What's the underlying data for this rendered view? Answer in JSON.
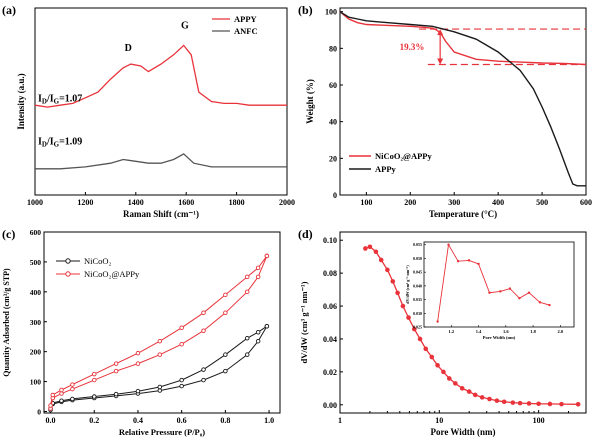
{
  "colors": {
    "red": "#e8333a",
    "black": "#1a1a1a",
    "gray": "#555555"
  },
  "chart_data": [
    {
      "panel": "(a)",
      "type": "line",
      "xlabel": "Raman Shift (cm⁻¹)",
      "ylabel": "Intensity (a.u.)",
      "xlim": [
        1000,
        2000
      ],
      "xticks": [
        1000,
        1200,
        1400,
        1600,
        1800,
        2000
      ],
      "ylim": [
        0,
        1
      ],
      "legend": "top-right",
      "series": [
        {
          "name": "APPY",
          "color": "#e8333a",
          "x": [
            1000,
            1050,
            1100,
            1150,
            1200,
            1250,
            1300,
            1350,
            1380,
            1420,
            1450,
            1500,
            1550,
            1590,
            1620,
            1650,
            1700,
            1750,
            1800,
            1850,
            1900,
            1950,
            2000
          ],
          "y": [
            0.48,
            0.47,
            0.48,
            0.49,
            0.52,
            0.55,
            0.62,
            0.68,
            0.7,
            0.69,
            0.66,
            0.7,
            0.75,
            0.8,
            0.75,
            0.55,
            0.5,
            0.49,
            0.49,
            0.48,
            0.48,
            0.48,
            0.48
          ]
        },
        {
          "name": "ANFC",
          "color": "#555555",
          "x": [
            1000,
            1100,
            1200,
            1300,
            1350,
            1400,
            1450,
            1500,
            1550,
            1590,
            1630,
            1700,
            1800,
            1900,
            2000
          ],
          "y": [
            0.14,
            0.14,
            0.15,
            0.17,
            0.19,
            0.18,
            0.17,
            0.17,
            0.19,
            0.22,
            0.17,
            0.15,
            0.15,
            0.15,
            0.15
          ]
        }
      ],
      "annotations": [
        {
          "text": "D",
          "x": 1370,
          "y": 0.77
        },
        {
          "text": "G",
          "x": 1595,
          "y": 0.89
        }
      ],
      "ratio_labels": [
        {
          "text": "Iₒ/Iₓ=1.07",
          "prefix": "I",
          "sub1": "D",
          "mid": "/I",
          "sub2": "G",
          "value": "=1.07"
        },
        {
          "text": "Iₒ/Iₓ=1.09",
          "prefix": "I",
          "sub1": "D",
          "mid": "/I",
          "sub2": "G",
          "value": "=1.09"
        }
      ]
    },
    {
      "panel": "(b)",
      "type": "line",
      "xlabel": "Temperature (°C)",
      "ylabel": "Weight (%)",
      "xlim": [
        40,
        600
      ],
      "xticks": [
        100,
        200,
        300,
        400,
        500,
        600
      ],
      "ylim": [
        0,
        102
      ],
      "yticks": [
        0,
        20,
        40,
        60,
        80,
        100
      ],
      "legend": "bottom-left",
      "annotation": "19.3%",
      "reference_lines_y": [
        90.5,
        71.2
      ],
      "series": [
        {
          "name": "NiCoO₂@APPy",
          "color": "#e8333a",
          "x": [
            40,
            60,
            80,
            100,
            150,
            200,
            230,
            250,
            260,
            270,
            280,
            300,
            350,
            400,
            450,
            500,
            550,
            600
          ],
          "y": [
            100,
            96,
            94,
            93,
            92.5,
            92,
            91.5,
            91,
            90,
            88,
            84,
            78,
            74,
            73,
            72.5,
            72,
            71.8,
            71.2
          ]
        },
        {
          "name": "APPy",
          "color": "#1a1a1a",
          "x": [
            40,
            60,
            80,
            100,
            150,
            200,
            250,
            300,
            350,
            400,
            450,
            480,
            500,
            520,
            540,
            560,
            570,
            580,
            590,
            600
          ],
          "y": [
            100,
            97,
            96,
            95,
            94,
            93,
            92,
            89,
            85,
            78,
            68,
            58,
            48,
            37,
            25,
            12,
            6,
            5,
            5,
            5
          ]
        }
      ]
    },
    {
      "panel": "(c)",
      "type": "line",
      "xlabel": "Relative Pressure (P/P₀)",
      "ylabel": "Quantity Adsorbed (cm³/g STP)",
      "xlim": [
        -0.03,
        1.05
      ],
      "xticks": [
        0.0,
        0.2,
        0.4,
        0.6,
        0.8,
        1.0
      ],
      "ylim": [
        -5,
        600
      ],
      "yticks": [
        0,
        100,
        200,
        300,
        400,
        500,
        600
      ],
      "legend": "top-left",
      "series": [
        {
          "name": "NiCoO₂",
          "color": "#1a1a1a",
          "x": [
            0.0,
            0.01,
            0.05,
            0.1,
            0.2,
            0.3,
            0.4,
            0.5,
            0.6,
            0.7,
            0.8,
            0.9,
            0.95,
            0.99
          ],
          "y_adsorption": [
            5,
            25,
            32,
            38,
            45,
            52,
            60,
            70,
            85,
            105,
            135,
            190,
            235,
            285
          ],
          "y_desorption": [
            10,
            28,
            36,
            42,
            50,
            58,
            68,
            82,
            105,
            140,
            190,
            245,
            265,
            285
          ]
        },
        {
          "name": "NiCoO₂@APPy",
          "color": "#e8333a",
          "x": [
            0.0,
            0.01,
            0.05,
            0.1,
            0.2,
            0.3,
            0.4,
            0.5,
            0.6,
            0.7,
            0.8,
            0.9,
            0.95,
            0.99
          ],
          "y_adsorption": [
            10,
            45,
            60,
            75,
            105,
            135,
            160,
            190,
            225,
            270,
            330,
            400,
            450,
            520
          ],
          "y_desorption": [
            20,
            55,
            72,
            90,
            125,
            160,
            195,
            235,
            280,
            330,
            390,
            450,
            480,
            520
          ]
        }
      ]
    },
    {
      "panel": "(d)",
      "type": "line",
      "xlabel": "Pore Width (nm)",
      "ylabel": "dV/dW (cm³ g⁻¹ nm⁻¹)",
      "xscale": "log",
      "xlim": [
        1,
        300
      ],
      "xticks": [
        1,
        10,
        100
      ],
      "ylim": [
        -0.005,
        0.105
      ],
      "yticks": [
        0.0,
        0.02,
        0.04,
        0.06,
        0.08,
        0.1
      ],
      "series": [
        {
          "name": "",
          "color": "#e8333a",
          "x": [
            1.8,
            2.0,
            2.3,
            2.6,
            3.0,
            3.4,
            3.8,
            4.3,
            4.9,
            5.6,
            6.4,
            7.3,
            8.4,
            9.6,
            11,
            12.6,
            14.5,
            17,
            20,
            23,
            27,
            32,
            38,
            45,
            55,
            65,
            80,
            100,
            130,
            170,
            250
          ],
          "y": [
            0.095,
            0.096,
            0.093,
            0.088,
            0.082,
            0.075,
            0.068,
            0.06,
            0.053,
            0.046,
            0.04,
            0.034,
            0.029,
            0.024,
            0.02,
            0.016,
            0.013,
            0.01,
            0.008,
            0.006,
            0.0045,
            0.0035,
            0.0025,
            0.0018,
            0.0013,
            0.001,
            0.0008,
            0.0006,
            0.0005,
            0.0004,
            0.0003
          ]
        }
      ],
      "inset": {
        "xlabel": "Pore Width (nm)",
        "ylabel": "dV/dW (cm³ g⁻¹ nm⁻¹)",
        "xlim": [
          1.0,
          2.1
        ],
        "xticks": [
          1.2,
          1.4,
          1.6,
          1.8,
          2.0
        ],
        "ylim": [
          0.025,
          0.056
        ],
        "yticks": [
          0.025,
          0.03,
          0.035,
          0.04,
          0.045,
          0.05,
          0.055
        ],
        "x": [
          1.1,
          1.18,
          1.25,
          1.33,
          1.4,
          1.48,
          1.56,
          1.63,
          1.7,
          1.77,
          1.85,
          1.92
        ],
        "y": [
          0.027,
          0.055,
          0.049,
          0.0493,
          0.048,
          0.0375,
          0.038,
          0.039,
          0.0355,
          0.0375,
          0.034,
          0.033
        ]
      }
    }
  ]
}
